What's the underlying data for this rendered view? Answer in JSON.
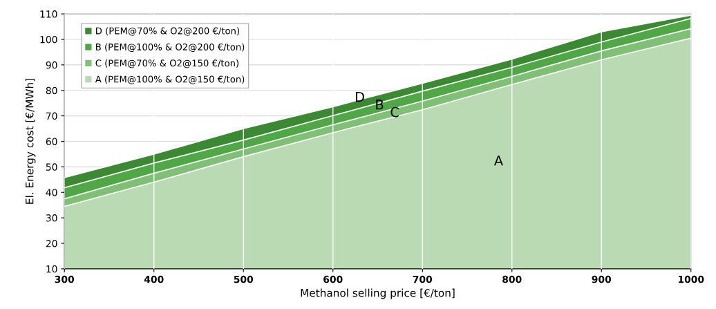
{
  "chart_data": {
    "type": "area",
    "xlabel": "Methanol selling price [€/ton]",
    "ylabel": "El. Energy cost [€/MWh]",
    "x": [
      300,
      400,
      500,
      600,
      700,
      800,
      900,
      1000
    ],
    "series": [
      {
        "name": "D (PEM@70% & O2@200 €/ton)",
        "color": "#3b8a33",
        "values": [
          45.8,
          55,
          65,
          73.6,
          82.8,
          92.3,
          103,
          109.5
        ]
      },
      {
        "name": "B (PEM@100% & O2@200 €/ton)",
        "color": "#4fa845",
        "values": [
          41.8,
          51.5,
          60.5,
          70.1,
          79.7,
          89,
          99,
          108.2
        ]
      },
      {
        "name": "C (PEM@70% & O2@150 €/ton)",
        "color": "#80bf76",
        "values": [
          37.5,
          47.5,
          57,
          66.5,
          75.8,
          85.5,
          95.5,
          104.2
        ]
      },
      {
        "name": "A (PEM@100% & O2@150 €/ton)",
        "color": "#b9dab2",
        "values": [
          34.5,
          44,
          54,
          63.4,
          72.4,
          82.3,
          92,
          100.5
        ]
      }
    ],
    "xlim": [
      300,
      1000
    ],
    "ylim": [
      10,
      110
    ],
    "xticks": [
      300,
      400,
      500,
      600,
      700,
      800,
      900,
      1000
    ],
    "yticks": [
      10,
      20,
      30,
      40,
      50,
      60,
      70,
      80,
      90,
      100,
      110
    ],
    "grid": true,
    "legend": "top left",
    "annotations": [
      {
        "text": "D",
        "x": 630,
        "y": 77
      },
      {
        "text": "B",
        "x": 652,
        "y": 74
      },
      {
        "text": "C",
        "x": 669,
        "y": 71
      },
      "A"
    ]
  }
}
